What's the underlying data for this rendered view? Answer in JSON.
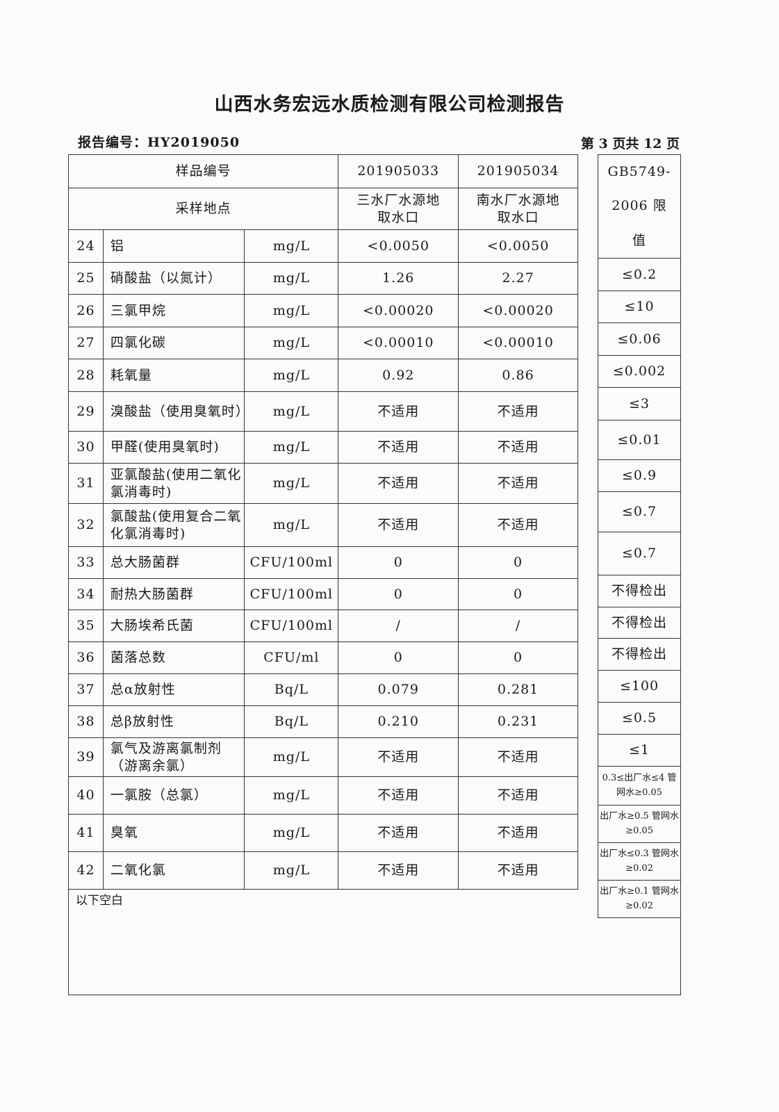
{
  "header": {
    "title": "山西水务宏远水质检测有限公司检测报告",
    "report_no": "报告编号：HY2019050",
    "page": "第 3 页共 12 页"
  },
  "table": {
    "sample_no_label": "样品编号",
    "location_label": "采样地点",
    "samples": [
      {
        "id": "201905033",
        "location": "三水厂水源地取水口"
      },
      {
        "id": "201905034",
        "location": "南水厂水源地取水口"
      }
    ],
    "limit_header": "GB5749-2006 限值",
    "rows": [
      {
        "no": "24",
        "item": "铝",
        "unit": "mg/L",
        "v1": "<0.0050",
        "v2": "<0.0050",
        "limit": "≤0.2"
      },
      {
        "no": "25",
        "item": "硝酸盐（以氮计）",
        "unit": "mg/L",
        "v1": "1.26",
        "v2": "2.27",
        "limit": "≤10"
      },
      {
        "no": "26",
        "item": "三氯甲烷",
        "unit": "mg/L",
        "v1": "<0.00020",
        "v2": "<0.00020",
        "limit": "≤0.06"
      },
      {
        "no": "27",
        "item": "四氯化碳",
        "unit": "mg/L",
        "v1": "<0.00010",
        "v2": "<0.00010",
        "limit": "≤0.002"
      },
      {
        "no": "28",
        "item": "耗氧量",
        "unit": "mg/L",
        "v1": "0.92",
        "v2": "0.86",
        "limit": "≤3"
      },
      {
        "no": "29",
        "item": "溴酸盐（使用臭氧时）",
        "unit": "mg/L",
        "v1": "不适用",
        "v2": "不适用",
        "limit": "≤0.01"
      },
      {
        "no": "30",
        "item": "甲醛(使用臭氧时)",
        "unit": "mg/L",
        "v1": "不适用",
        "v2": "不适用",
        "limit": "≤0.9"
      },
      {
        "no": "31",
        "item": "亚氯酸盐(使用二氧化氯消毒时)",
        "unit": "mg/L",
        "v1": "不适用",
        "v2": "不适用",
        "limit": "≤0.7"
      },
      {
        "no": "32",
        "item": "氯酸盐(使用复合二氧化氯消毒时)",
        "unit": "mg/L",
        "v1": "不适用",
        "v2": "不适用",
        "limit": "≤0.7"
      },
      {
        "no": "33",
        "item": "总大肠菌群",
        "unit": "CFU/100ml",
        "v1": "0",
        "v2": "0",
        "limit": "不得检出"
      },
      {
        "no": "34",
        "item": "耐热大肠菌群",
        "unit": "CFU/100ml",
        "v1": "0",
        "v2": "0",
        "limit": "不得检出"
      },
      {
        "no": "35",
        "item": "大肠埃希氏菌",
        "unit": "CFU/100ml",
        "v1": "/",
        "v2": "/",
        "limit": "不得检出"
      },
      {
        "no": "36",
        "item": "菌落总数",
        "unit": "CFU/ml",
        "v1": "0",
        "v2": "0",
        "limit": "≤100"
      },
      {
        "no": "37",
        "item": "总α放射性",
        "unit": "Bq/L",
        "v1": "0.079",
        "v2": "0.281",
        "limit": "≤0.5"
      },
      {
        "no": "38",
        "item": "总β放射性",
        "unit": "Bq/L",
        "v1": "0.210",
        "v2": "0.231",
        "limit": "≤1"
      },
      {
        "no": "39",
        "item": "氯气及游离氯制剂（游离余氯）",
        "unit": "mg/L",
        "v1": "不适用",
        "v2": "不适用",
        "limit": "0.3≤出厂水≤4 管网水≥0.05"
      },
      {
        "no": "40",
        "item": "一氯胺（总氯）",
        "unit": "mg/L",
        "v1": "不适用",
        "v2": "不适用",
        "limit": "出厂水≥0.5 管网水≥0.05"
      },
      {
        "no": "41",
        "item": "臭氧",
        "unit": "mg/L",
        "v1": "不适用",
        "v2": "不适用",
        "limit": "出厂水≤0.3 管网水≥0.02"
      },
      {
        "no": "42",
        "item": "二氧化氯",
        "unit": "mg/L",
        "v1": "不适用",
        "v2": "不适用",
        "limit": "出厂水≥0.1 管网水≥0.02"
      }
    ],
    "footer_note": "以下空白"
  }
}
